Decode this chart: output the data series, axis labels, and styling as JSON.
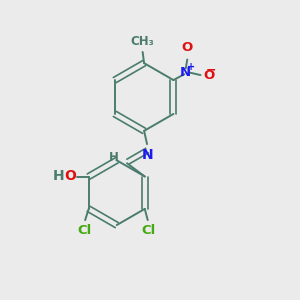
{
  "background_color": "#ebebeb",
  "bond_color": "#4a7c6e",
  "N_color": "#1a1aee",
  "O_color": "#dd1111",
  "Cl_color": "#44aa11",
  "H_color": "#4a7c6e",
  "figsize": [
    3.0,
    3.0
  ],
  "dpi": 100,
  "xlim": [
    0,
    10
  ],
  "ylim": [
    0,
    10
  ]
}
